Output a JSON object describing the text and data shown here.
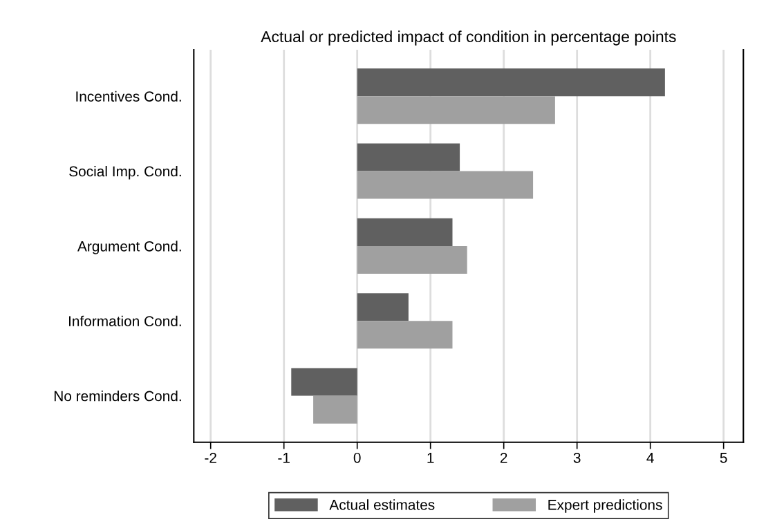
{
  "chart_data": {
    "type": "bar",
    "orientation": "horizontal",
    "title": "Actual or predicted impact of condition in percentage points",
    "categories": [
      "Incentives Cond.",
      "Social Imp. Cond.",
      "Argument Cond.",
      "Information Cond.",
      "No reminders Cond."
    ],
    "series": [
      {
        "name": "Actual estimates",
        "color": "#606060",
        "values": [
          4.2,
          1.4,
          1.3,
          0.7,
          -0.9
        ]
      },
      {
        "name": "Expert predictions",
        "color": "#a0a0a0",
        "values": [
          2.7,
          2.4,
          1.5,
          1.3,
          -0.6
        ]
      }
    ],
    "xlim": [
      -2.23,
      5.27
    ],
    "xticks": [
      -2,
      -1,
      0,
      1,
      2,
      3,
      4,
      5
    ],
    "grid": "x",
    "legend": "bottom"
  }
}
